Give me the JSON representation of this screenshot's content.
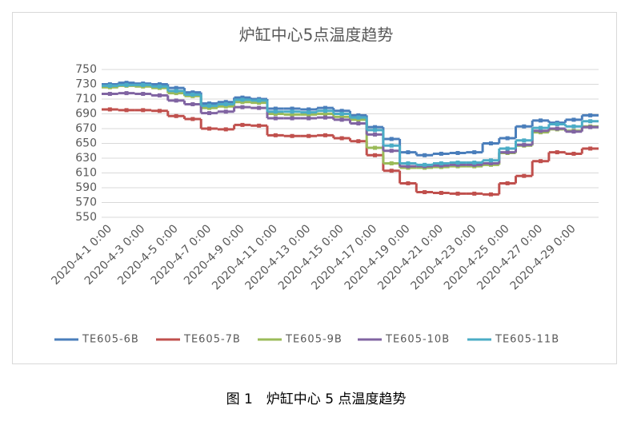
{
  "chart_data": {
    "type": "step-line",
    "title": "炉缸中心5点温度趋势",
    "caption": "图 1　炉缸中心 5 点温度趋势",
    "categories": [
      "2020-4-1 0:00",
      null,
      "2020-4-3 0:00",
      null,
      "2020-4-5 0:00",
      null,
      "2020-4-7 0:00",
      null,
      "2020-4-9 0:00",
      null,
      "2020-4-11 0:00",
      null,
      "2020-4-13 0:00",
      null,
      "2020-4-15 0:00",
      null,
      "2020-4-17 0:00",
      null,
      "2020-4-19 0:00",
      null,
      "2020-4-21 0:00",
      null,
      "2020-4-23 0:00",
      null,
      "2020-4-25 0:00",
      null,
      "2020-4-27 0:00",
      null,
      "2020-4-29 0:00",
      null
    ],
    "series": [
      {
        "name": "TE605-6B",
        "color": "#4a7ebb",
        "values": [
          730,
          732,
          731,
          730,
          725,
          719,
          704,
          706,
          712,
          710,
          697,
          697,
          696,
          698,
          694,
          688,
          672,
          656,
          638,
          634,
          636,
          637,
          638,
          650,
          657,
          673,
          681,
          678,
          682,
          688
        ]
      },
      {
        "name": "TE605-7B",
        "color": "#c0504d",
        "values": [
          696,
          695,
          695,
          694,
          687,
          683,
          670,
          669,
          675,
          674,
          661,
          660,
          660,
          661,
          657,
          653,
          634,
          613,
          596,
          584,
          583,
          582,
          582,
          581,
          596,
          606,
          626,
          638,
          636,
          643
        ]
      },
      {
        "name": "TE605-9B",
        "color": "#9bbb59",
        "values": [
          726,
          728,
          727,
          725,
          718,
          714,
          698,
          700,
          706,
          705,
          690,
          689,
          689,
          690,
          686,
          682,
          644,
          623,
          617,
          617,
          618,
          619,
          619,
          621,
          637,
          647,
          665,
          669,
          667,
          673
        ]
      },
      {
        "name": "TE605-10B",
        "color": "#8064a2",
        "values": [
          717,
          718,
          717,
          715,
          708,
          703,
          691,
          693,
          699,
          698,
          684,
          684,
          684,
          685,
          682,
          677,
          662,
          640,
          619,
          619,
          620,
          621,
          621,
          623,
          638,
          648,
          667,
          670,
          666,
          672
        ]
      },
      {
        "name": "TE605-11B",
        "color": "#4bacc6",
        "values": [
          728,
          729,
          729,
          727,
          721,
          716,
          701,
          703,
          709,
          708,
          693,
          693,
          692,
          694,
          690,
          685,
          668,
          647,
          623,
          621,
          623,
          624,
          624,
          627,
          643,
          654,
          671,
          676,
          673,
          680
        ]
      }
    ],
    "ylim": [
      550,
      750
    ],
    "yticks": [
      550,
      570,
      590,
      610,
      630,
      650,
      670,
      690,
      710,
      730,
      750
    ],
    "grid": true,
    "legend": "bottom"
  }
}
